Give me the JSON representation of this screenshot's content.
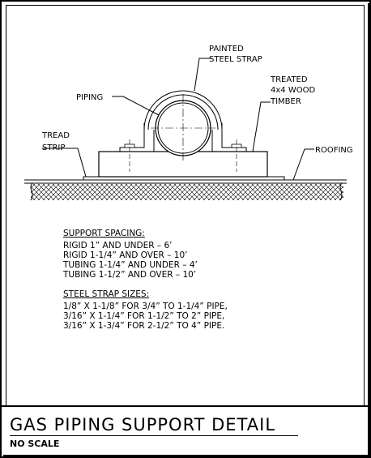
{
  "labels": {
    "painted": "PAINTED",
    "steel_strap": "STEEL STRAP",
    "treated": "TREATED",
    "wood": "4x4 WOOD",
    "timber": "TIMBER",
    "piping": "PIPING",
    "tread": "TREAD",
    "strip": "STRIP",
    "roofing": "ROOFING"
  },
  "support_spacing": {
    "heading": "SUPPORT SPACING:",
    "lines": [
      "RIGID 1” AND UNDER – 6’",
      "RIGID 1-1/4” AND OVER – 10’",
      "TUBING 1-1/4” AND UNDER – 4’",
      "TUBING 1-1/2” AND OVER – 10’"
    ]
  },
  "strap_sizes": {
    "heading": "STEEL STRAP SIZES:",
    "lines": [
      "1/8” X 1-1/8” FOR 3/4” TO 1-1/4” PIPE,",
      "3/16” X 1-1/4” FOR 1-1/2” TO 2” PIPE,",
      "3/16” X 1-3/4” FOR 2-1/2” TO 4” PIPE."
    ]
  },
  "title_block": {
    "title": "GAS PIPING SUPPORT DETAIL",
    "scale": "NO SCALE"
  }
}
